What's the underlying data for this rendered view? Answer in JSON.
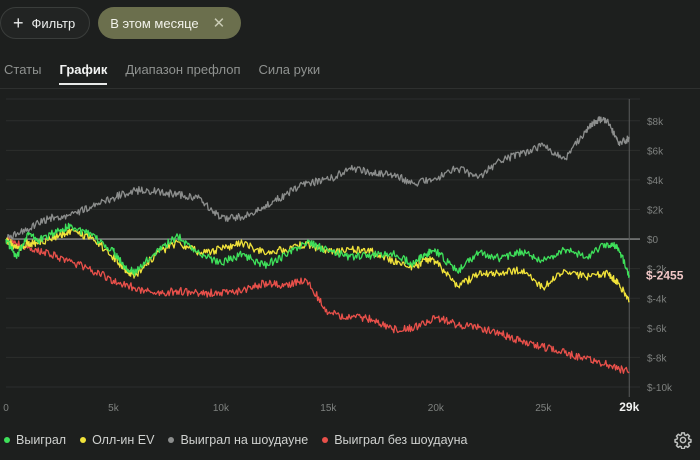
{
  "toolbar": {
    "filter_label": "Фильтр",
    "period_label": "В этом месяце"
  },
  "tabs": [
    {
      "label": "Статы"
    },
    {
      "label": "График"
    },
    {
      "label": "Диапазон префлоп"
    },
    {
      "label": "Сила руки"
    }
  ],
  "current_value_label": "$-2455",
  "colors": {
    "won": "#3ee05a",
    "allin_ev": "#f0e23a",
    "showdown": "#8b8d8c",
    "non_showdown": "#e8504a"
  },
  "chart_data": {
    "type": "line",
    "title": "",
    "xlabel": "",
    "ylabel": "",
    "xlim": [
      0,
      29500
    ],
    "ylim": [
      -10000,
      9200
    ],
    "x_ticks": [
      0,
      5000,
      10000,
      15000,
      20000,
      25000
    ],
    "x_tick_labels": [
      "0",
      "5k",
      "10k",
      "15k",
      "20k",
      "25k"
    ],
    "x_end_label": "29k",
    "x_end_value": 29000,
    "y_ticks": [
      8000,
      6000,
      4000,
      2000,
      0,
      -2000,
      -4000,
      -6000,
      -8000,
      -10000
    ],
    "y_tick_labels": [
      "$8k",
      "$6k",
      "$4k",
      "$2k",
      "$0",
      "$-2k",
      "$-4k",
      "$-6k",
      "$-8k",
      "$-10k"
    ],
    "series": [
      {
        "name": "Выиграл",
        "key": "won",
        "x": [
          0,
          500,
          1000,
          1500,
          2500,
          3000,
          4000,
          5000,
          5500,
          6000,
          7000,
          8000,
          9000,
          10000,
          11000,
          12000,
          13000,
          14000,
          15000,
          16000,
          17000,
          18000,
          19000,
          19500,
          20000,
          21000,
          22000,
          23000,
          24000,
          25000,
          26000,
          27000,
          28000,
          28500,
          29000
        ],
        "values": [
          0,
          -1300,
          400,
          -100,
          600,
          900,
          200,
          -800,
          -1800,
          -2300,
          -800,
          200,
          -1000,
          -1600,
          -1000,
          -1800,
          -1100,
          -200,
          -800,
          -1200,
          -1100,
          -1000,
          -1700,
          -1000,
          -800,
          -2200,
          -900,
          -1300,
          -800,
          -1500,
          -700,
          -1200,
          -300,
          -600,
          -2455
        ]
      },
      {
        "name": "Олл-ин EV",
        "key": "allin_ev",
        "x": [
          0,
          500,
          1000,
          1500,
          2500,
          3000,
          4000,
          5000,
          5500,
          6000,
          7000,
          8000,
          9000,
          10000,
          11000,
          12000,
          13000,
          14000,
          15000,
          16000,
          17000,
          18000,
          19000,
          19500,
          20000,
          21000,
          22000,
          23000,
          24000,
          25000,
          26000,
          27000,
          28000,
          28500,
          29000
        ],
        "values": [
          0,
          -600,
          -300,
          -300,
          300,
          500,
          100,
          -1200,
          -2000,
          -2500,
          -1000,
          -200,
          -900,
          -700,
          -300,
          -900,
          -700,
          -300,
          -900,
          -700,
          -800,
          -1500,
          -1900,
          -1400,
          -1500,
          -3200,
          -2400,
          -2300,
          -2100,
          -3300,
          -2100,
          -2600,
          -2300,
          -3000,
          -4200
        ]
      },
      {
        "name": "Выиграл на шоудауне",
        "key": "showdown",
        "x": [
          0,
          1000,
          2000,
          3000,
          4000,
          5000,
          6000,
          7000,
          8000,
          9000,
          10000,
          11000,
          12000,
          13000,
          14000,
          15000,
          16000,
          17000,
          18000,
          19000,
          20000,
          21000,
          22000,
          23000,
          24000,
          25000,
          26000,
          27000,
          27500,
          28000,
          28500,
          29000
        ],
        "values": [
          0,
          700,
          1400,
          1600,
          2200,
          2800,
          3300,
          3200,
          3000,
          2800,
          1400,
          1500,
          2200,
          3000,
          3800,
          4000,
          4800,
          4500,
          4300,
          3800,
          4100,
          4800,
          4200,
          5300,
          5800,
          6300,
          5400,
          7400,
          8000,
          8100,
          6400,
          6800
        ]
      },
      {
        "name": "Выиграл без шоудауна",
        "key": "non_showdown",
        "x": [
          0,
          1000,
          2000,
          3000,
          4000,
          5000,
          6000,
          7000,
          8000,
          9000,
          10000,
          11000,
          12000,
          13000,
          14000,
          15000,
          16000,
          17000,
          18000,
          19000,
          20000,
          21000,
          22000,
          23000,
          24000,
          25000,
          26000,
          27000,
          28000,
          29000
        ],
        "values": [
          0,
          -600,
          -1000,
          -1500,
          -2100,
          -2800,
          -3300,
          -3700,
          -3500,
          -3700,
          -3600,
          -3500,
          -3000,
          -3100,
          -2800,
          -5000,
          -5300,
          -5400,
          -6100,
          -6000,
          -5300,
          -5800,
          -6000,
          -6400,
          -6900,
          -7300,
          -7700,
          -8100,
          -8500,
          -9000
        ]
      }
    ]
  }
}
